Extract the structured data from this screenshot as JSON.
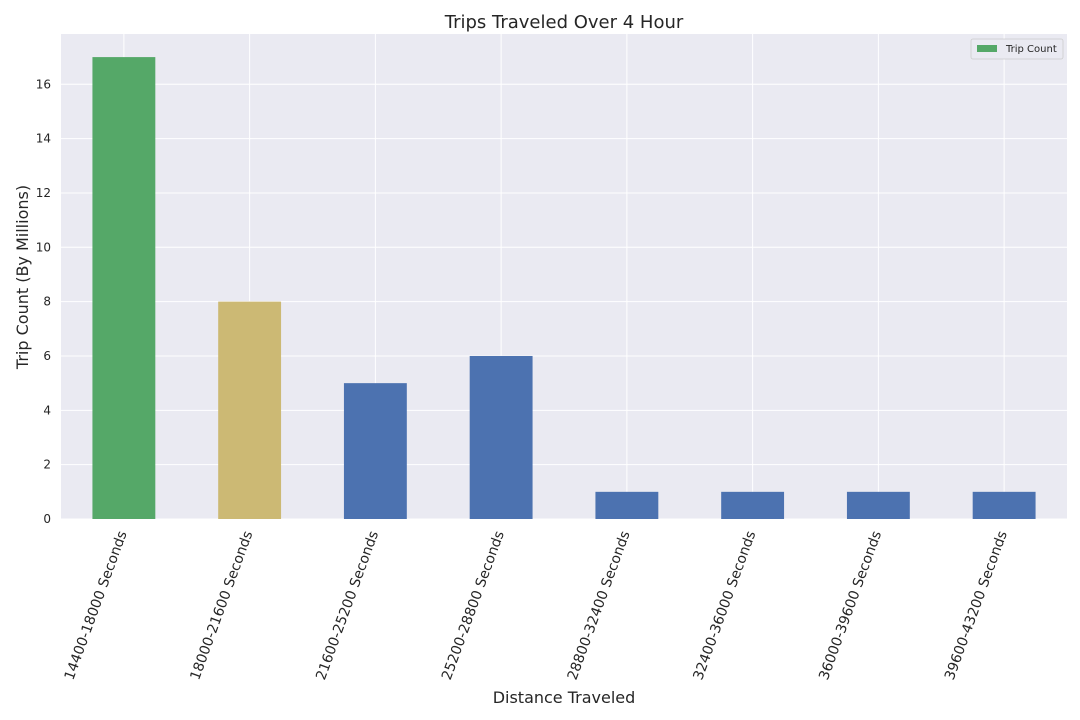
{
  "chart_data": {
    "type": "bar",
    "title": "Trips Traveled Over 4 Hour",
    "xlabel": "Distance Traveled",
    "ylabel": "Trip Count (By Millions)",
    "categories": [
      "14400-18000 Seconds",
      "18000-21600 Seconds",
      "21600-25200 Seconds",
      "25200-28800 Seconds",
      "28800-32400 Seconds",
      "32400-36000 Seconds",
      "36000-39600 Seconds",
      "39600-43200 Seconds"
    ],
    "series": [
      {
        "name": "Trip Count",
        "values": [
          17,
          8,
          5,
          6,
          1,
          1,
          1,
          1
        ]
      }
    ],
    "bar_colors": [
      "#55a868",
      "#ccb974",
      "#4c72b0",
      "#4c72b0",
      "#4c72b0",
      "#4c72b0",
      "#4c72b0",
      "#4c72b0"
    ],
    "ylim": [
      0,
      17.85
    ],
    "yticks": [
      0,
      2,
      4,
      6,
      8,
      10,
      12,
      14,
      16
    ],
    "grid": true,
    "legend_position": "top-right",
    "background_color": "#eaeaf2"
  }
}
